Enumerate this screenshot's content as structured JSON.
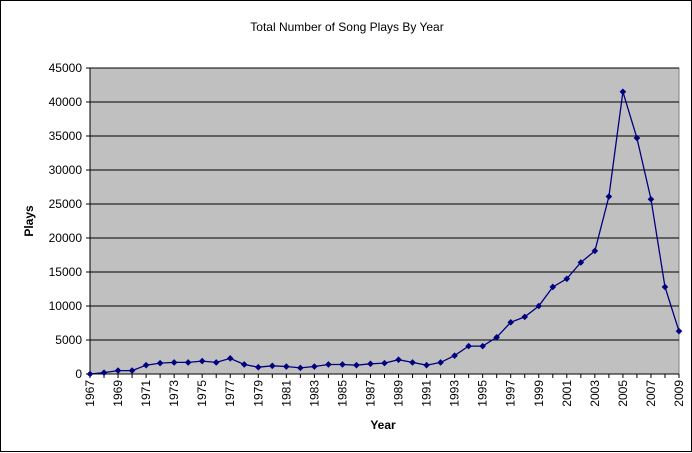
{
  "chart_data": {
    "type": "line",
    "title": "Total Number of Song Plays By Year",
    "xlabel": "Year",
    "ylabel": "Plays",
    "ylim": [
      0,
      45000
    ],
    "yticks": [
      0,
      5000,
      10000,
      15000,
      20000,
      25000,
      30000,
      35000,
      40000,
      45000
    ],
    "xticks": [
      "1967",
      "1969",
      "1971",
      "1973",
      "1975",
      "1977",
      "1979",
      "1981",
      "1983",
      "1985",
      "1987",
      "1989",
      "1991",
      "1993",
      "1995",
      "1997",
      "1999",
      "2001",
      "2003",
      "2005",
      "2007",
      "2009"
    ],
    "grid": true,
    "legend": "none",
    "colors": {
      "plot_bg": "#c0c0c0",
      "line": "#000080",
      "grid": "#000000"
    },
    "x": [
      1967,
      1968,
      1969,
      1970,
      1971,
      1972,
      1973,
      1974,
      1975,
      1976,
      1977,
      1978,
      1979,
      1980,
      1981,
      1982,
      1983,
      1984,
      1985,
      1986,
      1987,
      1988,
      1989,
      1990,
      1991,
      1992,
      1993,
      1994,
      1995,
      1996,
      1997,
      1998,
      1999,
      2000,
      2001,
      2002,
      2003,
      2004,
      2005,
      2006,
      2007,
      2008,
      2009
    ],
    "series": [
      {
        "values": [
          0,
          200,
          500,
          500,
          1300,
          1600,
          1700,
          1700,
          1900,
          1700,
          2300,
          1400,
          1000,
          1200,
          1100,
          900,
          1100,
          1400,
          1400,
          1300,
          1500,
          1600,
          2100,
          1700,
          1300,
          1700,
          2700,
          4100,
          4100,
          5400,
          7600,
          8400,
          10000,
          12800,
          14000,
          16400,
          18100,
          26100,
          41500,
          34700,
          25700,
          12800,
          6300
        ]
      }
    ]
  }
}
